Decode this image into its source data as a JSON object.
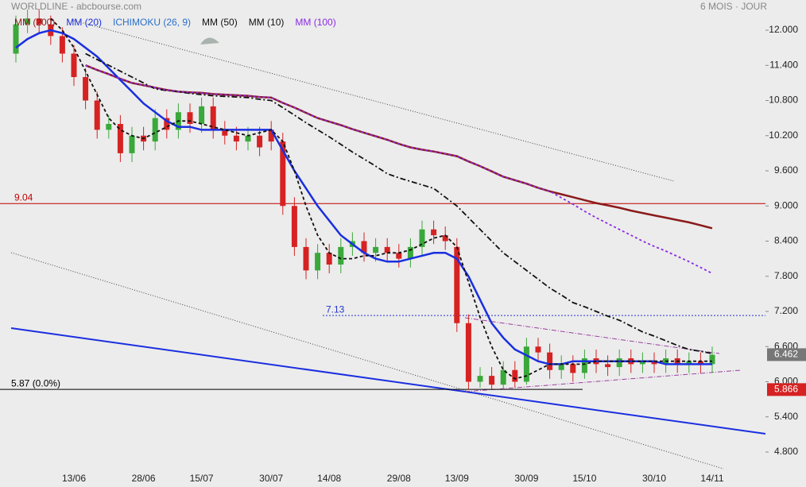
{
  "chart_data": {
    "type": "candlestick",
    "title": "WORLDLINE - abcbourse.com",
    "subtitle": "6 MOIS · JOUR",
    "categories": [
      null,
      null,
      null,
      null,
      null,
      "13/06",
      null,
      null,
      null,
      null,
      null,
      "28/06",
      null,
      null,
      null,
      null,
      "15/07",
      null,
      null,
      null,
      null,
      null,
      "30/07",
      null,
      null,
      null,
      null,
      "14/08",
      null,
      null,
      null,
      null,
      null,
      "29/08",
      null,
      null,
      null,
      null,
      "13/09",
      null,
      null,
      null,
      null,
      null,
      "30/09",
      null,
      null,
      null,
      null,
      "15/10",
      null,
      null,
      null,
      null,
      null,
      "30/10",
      null,
      null,
      null,
      null,
      "14/11"
    ],
    "open": [
      11.6,
      12.1,
      12.2,
      12.1,
      11.9,
      11.6,
      11.2,
      10.8,
      10.3,
      10.4,
      9.9,
      10.2,
      10.1,
      10.5,
      10.3,
      10.6,
      10.4,
      10.7,
      10.3,
      10.2,
      10.1,
      10.2,
      10.3,
      10.1,
      9.0,
      8.3,
      7.9,
      8.2,
      8.0,
      8.3,
      8.4,
      8.2,
      8.3,
      8.2,
      8.1,
      8.3,
      8.6,
      8.5,
      8.3,
      7.0,
      6.0,
      6.1,
      5.95,
      6.2,
      6.0,
      6.6,
      6.5,
      6.2,
      6.3,
      6.15,
      6.4,
      6.3,
      6.25,
      6.4,
      6.3,
      6.35,
      6.3,
      6.4,
      6.3,
      6.35,
      6.3
    ],
    "high": [
      12.25,
      12.35,
      12.35,
      12.25,
      12.05,
      11.75,
      11.35,
      10.95,
      10.55,
      10.55,
      10.35,
      10.35,
      10.65,
      10.65,
      10.75,
      10.75,
      10.85,
      10.85,
      10.45,
      10.35,
      10.35,
      10.35,
      10.45,
      10.25,
      9.15,
      8.45,
      8.35,
      8.35,
      8.45,
      8.55,
      8.55,
      8.45,
      8.45,
      8.35,
      8.45,
      8.75,
      8.75,
      8.65,
      8.45,
      7.15,
      6.25,
      6.25,
      6.35,
      6.35,
      6.75,
      6.75,
      6.65,
      6.45,
      6.45,
      6.55,
      6.55,
      6.45,
      6.55,
      6.55,
      6.5,
      6.5,
      6.55,
      6.55,
      6.5,
      6.5,
      6.6
    ],
    "low": [
      11.45,
      11.95,
      11.95,
      11.75,
      11.45,
      11.05,
      10.65,
      10.15,
      10.15,
      9.75,
      9.75,
      9.95,
      9.95,
      10.15,
      10.15,
      10.25,
      10.25,
      10.15,
      10.05,
      9.95,
      9.95,
      9.85,
      9.95,
      8.85,
      8.15,
      7.75,
      7.75,
      7.85,
      7.85,
      8.15,
      8.05,
      8.05,
      8.05,
      7.95,
      7.95,
      8.15,
      8.35,
      8.25,
      6.85,
      5.87,
      5.9,
      5.87,
      5.87,
      5.9,
      5.95,
      6.35,
      6.05,
      6.05,
      6.0,
      6.05,
      6.15,
      6.1,
      6.1,
      6.15,
      6.15,
      6.15,
      6.15,
      6.15,
      6.15,
      6.15,
      6.15
    ],
    "close": [
      12.1,
      12.2,
      12.1,
      11.9,
      11.6,
      11.2,
      10.8,
      10.3,
      10.4,
      9.9,
      10.2,
      10.1,
      10.5,
      10.3,
      10.6,
      10.4,
      10.7,
      10.3,
      10.2,
      10.1,
      10.2,
      10.0,
      10.1,
      9.0,
      8.3,
      7.9,
      8.2,
      8.0,
      8.3,
      8.4,
      8.2,
      8.3,
      8.2,
      8.1,
      8.3,
      8.6,
      8.5,
      8.4,
      7.0,
      6.0,
      6.1,
      5.95,
      6.2,
      6.0,
      6.6,
      6.5,
      6.2,
      6.3,
      6.15,
      6.4,
      6.3,
      6.25,
      6.4,
      6.3,
      6.35,
      6.3,
      6.4,
      6.3,
      6.35,
      6.3,
      6.46
    ],
    "up_color": "#3aa83a",
    "down_color": "#d62222",
    "series": [
      {
        "name": "MM (200)",
        "color": "#8b1a1a",
        "style": "solid",
        "values": [
          null,
          null,
          null,
          null,
          null,
          null,
          11.4,
          11.32,
          11.25,
          11.17,
          11.1,
          11.06,
          11.02,
          10.98,
          10.95,
          10.94,
          10.93,
          10.91,
          10.9,
          10.89,
          10.88,
          10.86,
          10.85,
          10.76,
          10.68,
          10.59,
          10.5,
          10.44,
          10.38,
          10.31,
          10.25,
          10.19,
          10.13,
          10.06,
          10.0,
          9.96,
          9.93,
          9.89,
          9.85,
          9.76,
          9.68,
          9.59,
          9.5,
          9.44,
          9.38,
          9.31,
          9.25,
          9.2,
          9.15,
          9.1,
          9.05,
          9.01,
          8.97,
          8.92,
          8.88,
          8.84,
          8.8,
          8.76,
          8.72,
          8.67,
          8.62
        ]
      },
      {
        "name": "MM (20)",
        "color": "#1a2fe0",
        "style": "solid",
        "values": [
          11.7,
          11.85,
          11.95,
          12.0,
          11.95,
          11.85,
          11.7,
          11.55,
          11.35,
          11.15,
          10.95,
          10.75,
          10.6,
          10.45,
          10.35,
          10.35,
          10.3,
          10.3,
          10.3,
          10.3,
          10.3,
          10.3,
          10.3,
          9.95,
          9.6,
          9.3,
          9.0,
          8.75,
          8.5,
          8.35,
          8.2,
          8.1,
          8.05,
          8.05,
          8.1,
          8.15,
          8.2,
          8.2,
          8.1,
          7.8,
          7.4,
          7.0,
          6.75,
          6.55,
          6.45,
          6.35,
          6.3,
          6.3,
          6.35,
          6.35,
          6.35,
          6.35,
          6.35,
          6.35,
          6.35,
          6.35,
          6.3,
          6.3,
          6.3,
          6.3,
          6.3
        ]
      },
      {
        "name": "MM (50)",
        "color": "#111111",
        "style": "dashdot",
        "values": [
          null,
          null,
          null,
          null,
          null,
          null,
          11.6,
          11.5,
          11.4,
          11.3,
          11.2,
          11.1,
          11.0,
          10.97,
          10.95,
          10.92,
          10.9,
          10.88,
          10.87,
          10.86,
          10.85,
          10.82,
          10.8,
          10.68,
          10.55,
          10.42,
          10.3,
          10.18,
          10.05,
          9.92,
          9.8,
          9.68,
          9.55,
          9.48,
          9.42,
          9.36,
          9.3,
          9.15,
          9.0,
          8.8,
          8.6,
          8.4,
          8.2,
          8.05,
          7.9,
          7.75,
          7.6,
          7.48,
          7.35,
          7.28,
          7.2,
          7.12,
          7.05,
          6.95,
          6.85,
          6.78,
          6.7,
          6.62,
          6.55,
          6.52,
          6.48
        ]
      },
      {
        "name": "MM (10)",
        "color": "#111111",
        "style": "dashed",
        "values": [
          null,
          null,
          null,
          12.2,
          12.0,
          11.7,
          11.3,
          10.9,
          10.5,
          10.3,
          10.2,
          10.15,
          10.25,
          10.35,
          10.45,
          10.45,
          10.4,
          10.35,
          10.3,
          10.25,
          10.2,
          10.25,
          10.3,
          10.1,
          9.6,
          9.0,
          8.5,
          8.2,
          8.1,
          8.1,
          8.15,
          8.15,
          8.2,
          8.2,
          8.25,
          8.35,
          8.45,
          8.5,
          8.3,
          7.7,
          7.1,
          6.6,
          6.2,
          6.05,
          6.1,
          6.2,
          6.3,
          6.3,
          6.3,
          6.3,
          6.35,
          6.35,
          6.35,
          6.35,
          6.35,
          6.35,
          6.35,
          6.35,
          6.35,
          6.35,
          6.35
        ]
      },
      {
        "name": "MM (100)",
        "color": "#8a2be2",
        "style": "dotted",
        "values": [
          null,
          null,
          null,
          null,
          null,
          null,
          11.4,
          11.32,
          11.25,
          11.17,
          11.1,
          11.06,
          11.02,
          10.98,
          10.95,
          10.94,
          10.93,
          10.91,
          10.9,
          10.89,
          10.88,
          10.86,
          10.85,
          10.76,
          10.68,
          10.59,
          10.5,
          10.44,
          10.38,
          10.31,
          10.25,
          10.19,
          10.13,
          10.06,
          10.0,
          9.96,
          9.93,
          9.89,
          9.85,
          9.76,
          9.68,
          9.59,
          9.5,
          9.44,
          9.38,
          9.31,
          9.25,
          9.14,
          9.03,
          8.91,
          8.8,
          8.7,
          8.6,
          8.5,
          8.4,
          8.31,
          8.23,
          8.14,
          8.05,
          7.95,
          7.85
        ]
      }
    ],
    "overlays": [
      {
        "name": "ICHIMOKU (26, 9)",
        "color": "#2a6fc9"
      }
    ],
    "levels": [
      {
        "value": 9.04,
        "label": "9.04",
        "color": "#c00000"
      },
      {
        "value": 7.13,
        "label": "7.13",
        "color": "#2233cc"
      },
      {
        "value": 5.87,
        "label": "5.87  (0.0%)",
        "color": "#000000"
      }
    ],
    "price_tags": [
      {
        "value": 6.462,
        "color": "#777777"
      },
      {
        "value": 5.866,
        "color": "#d62222"
      }
    ],
    "ylim": [
      4.55,
      12.5
    ],
    "yticks": [
      {
        "value": 12.0,
        "label": "12.000"
      },
      {
        "value": 11.4,
        "label": "11.400"
      },
      {
        "value": 10.8,
        "label": "10.800"
      },
      {
        "value": 10.2,
        "label": "10.200"
      },
      {
        "value": 9.6,
        "label": "9.600"
      },
      {
        "value": 9.0,
        "label": "9.000"
      },
      {
        "value": 8.4,
        "label": "8.400"
      },
      {
        "value": 7.8,
        "label": "7.800"
      },
      {
        "value": 7.2,
        "label": "7.200"
      },
      {
        "value": 6.6,
        "label": "6.600"
      },
      {
        "value": 6.0,
        "label": "6.000"
      },
      {
        "value": 5.4,
        "label": "5.400"
      },
      {
        "value": 4.8,
        "label": "4.800"
      }
    ]
  }
}
